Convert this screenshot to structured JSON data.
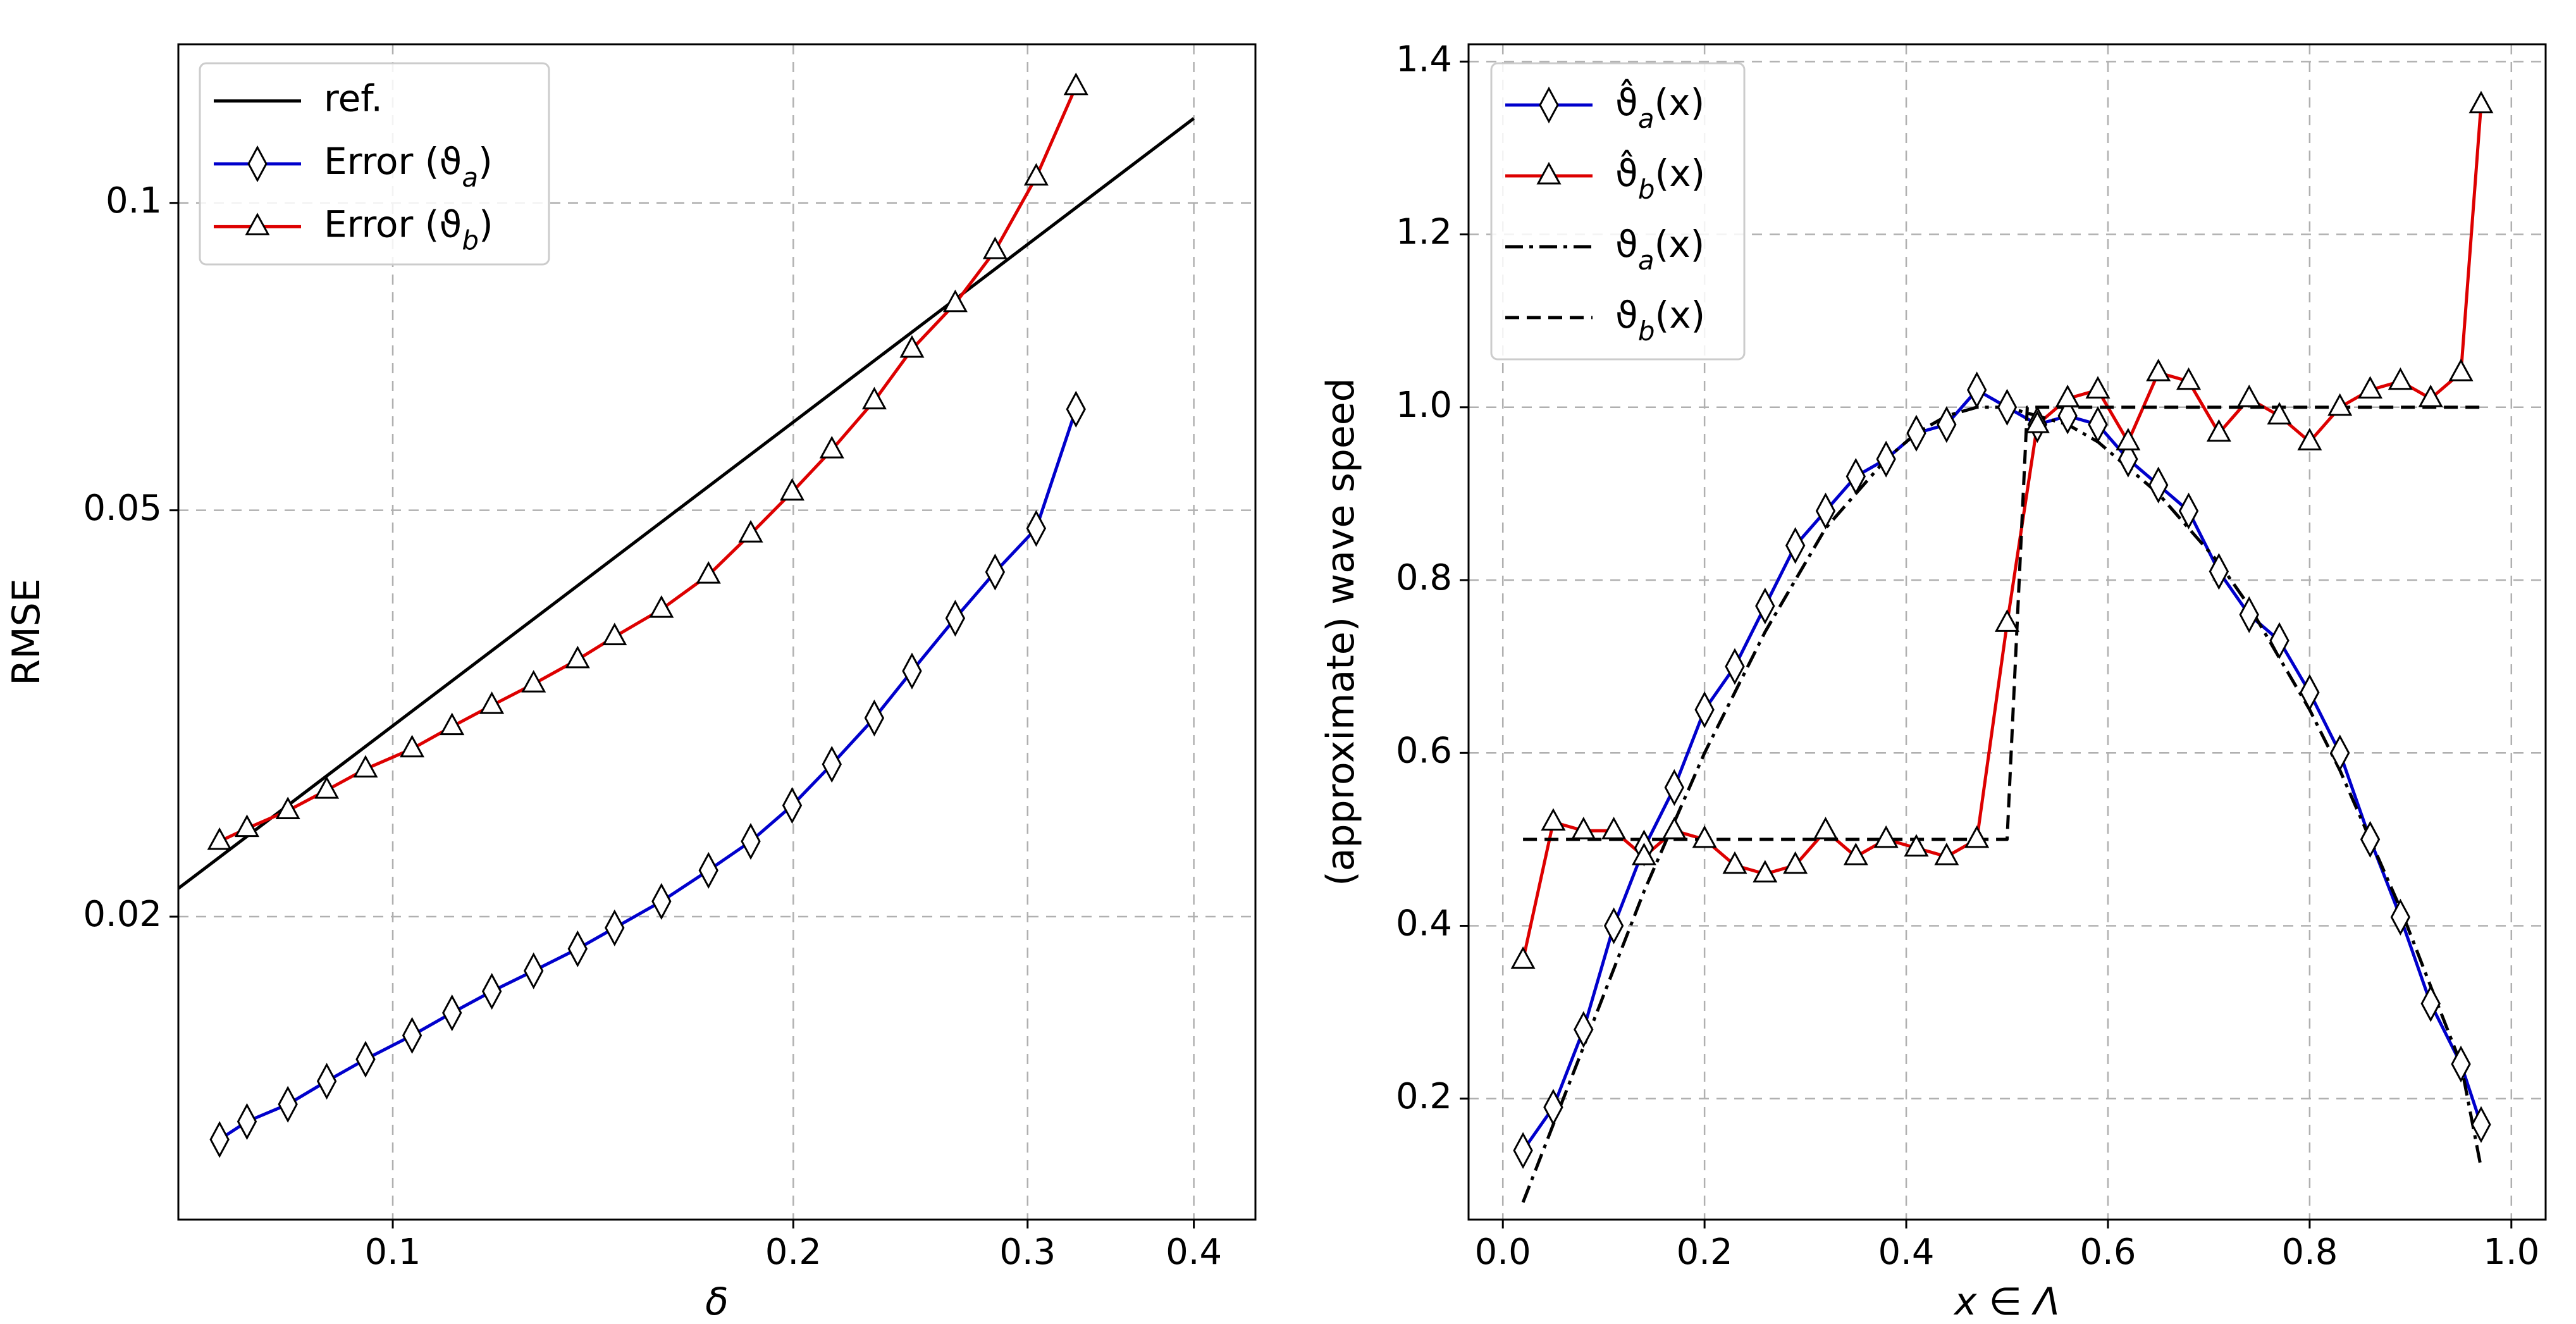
{
  "chart_data": [
    {
      "type": "line",
      "xscale": "log",
      "yscale": "log",
      "xlabel": "δ",
      "ylabel": "RMSE",
      "xlim": [
        0.069,
        0.445
      ],
      "ylim": [
        0.0101,
        0.143
      ],
      "xticks": [
        0.1,
        0.2,
        0.3,
        0.4
      ],
      "xtick_labels": [
        "0.1",
        "0.2",
        "0.3",
        "0.4"
      ],
      "yticks": [
        0.02,
        0.05,
        0.1
      ],
      "ytick_labels": [
        "0.02",
        "0.05",
        "0.1"
      ],
      "grid": true,
      "legend_position": "top-left",
      "series": [
        {
          "name": "ref.",
          "legend_label": "ref.",
          "color": "#000000",
          "marker": "none",
          "x": [
            0.066,
            0.4
          ],
          "y": [
            0.0204,
            0.121
          ]
        },
        {
          "name": "Error (ϑa)",
          "legend_label": "Error (ϑ",
          "legend_sub": "a",
          "legend_suffix": ")",
          "color": "#0000cc",
          "marker": "diamond",
          "x": [
            0.0741,
            0.0777,
            0.0834,
            0.0892,
            0.0954,
            0.1034,
            0.1108,
            0.1187,
            0.1276,
            0.1377,
            0.1468,
            0.1592,
            0.1727,
            0.1858,
            0.1996,
            0.2138,
            0.2301,
            0.2456,
            0.2647,
            0.2836,
            0.3045,
            0.3262
          ],
          "y": [
            0.0121,
            0.0126,
            0.0131,
            0.0138,
            0.0145,
            0.0153,
            0.0161,
            0.0169,
            0.0177,
            0.0186,
            0.0195,
            0.0207,
            0.0222,
            0.0237,
            0.0257,
            0.0282,
            0.0313,
            0.0348,
            0.0392,
            0.0435,
            0.048,
            0.0628
          ]
        },
        {
          "name": "Error (ϑb)",
          "legend_label": "Error (ϑ",
          "legend_sub": "b",
          "legend_suffix": ")",
          "color": "#dd0000",
          "marker": "triangle",
          "x": [
            0.0741,
            0.0777,
            0.0834,
            0.0892,
            0.0954,
            0.1034,
            0.1108,
            0.1187,
            0.1276,
            0.1377,
            0.1468,
            0.1592,
            0.1727,
            0.1858,
            0.1996,
            0.2138,
            0.2301,
            0.2456,
            0.2647,
            0.2836,
            0.3045,
            0.3262
          ],
          "y": [
            0.0237,
            0.0244,
            0.0254,
            0.0266,
            0.0279,
            0.0292,
            0.0307,
            0.0322,
            0.0338,
            0.0357,
            0.0376,
            0.04,
            0.0432,
            0.0474,
            0.0521,
            0.0573,
            0.064,
            0.0719,
            0.0797,
            0.0898,
            0.106,
            0.13
          ]
        }
      ]
    },
    {
      "type": "line",
      "xscale": "linear",
      "yscale": "linear",
      "xlabel": "x ∈ Λ",
      "ylabel": "(approximate) wave speed",
      "xlim": [
        -0.034,
        1.034
      ],
      "ylim": [
        0.06,
        1.42
      ],
      "xticks": [
        0.0,
        0.2,
        0.4,
        0.6,
        0.8,
        1.0
      ],
      "xtick_labels": [
        "0.0",
        "0.2",
        "0.4",
        "0.6",
        "0.8",
        "1.0"
      ],
      "yticks": [
        0.2,
        0.4,
        0.6,
        0.8,
        1.0,
        1.2,
        1.4
      ],
      "ytick_labels": [
        "0.2",
        "0.4",
        "0.6",
        "0.8",
        "1.0",
        "1.2",
        "1.4"
      ],
      "grid": true,
      "legend_position": "top-left",
      "series": [
        {
          "name": "ϑ̂a(x)",
          "legend_label": "ϑ̂",
          "legend_sub": "a",
          "legend_suffix": "(x)",
          "color": "#0000cc",
          "marker": "diamond",
          "x": [
            0.02,
            0.05,
            0.08,
            0.11,
            0.14,
            0.17,
            0.2,
            0.23,
            0.26,
            0.29,
            0.32,
            0.35,
            0.38,
            0.41,
            0.44,
            0.47,
            0.5,
            0.53,
            0.56,
            0.59,
            0.62,
            0.65,
            0.68,
            0.71,
            0.74,
            0.77,
            0.8,
            0.83,
            0.86,
            0.89,
            0.92,
            0.95,
            0.97
          ],
          "y": [
            0.14,
            0.19,
            0.28,
            0.4,
            0.49,
            0.56,
            0.65,
            0.7,
            0.77,
            0.84,
            0.88,
            0.92,
            0.94,
            0.97,
            0.98,
            1.02,
            1.0,
            0.98,
            0.99,
            0.98,
            0.94,
            0.91,
            0.88,
            0.81,
            0.76,
            0.73,
            0.67,
            0.6,
            0.5,
            0.41,
            0.31,
            0.24,
            0.17
          ]
        },
        {
          "name": "ϑ̂b(x)",
          "legend_label": "ϑ̂",
          "legend_sub": "b",
          "legend_suffix": "(x)",
          "color": "#dd0000",
          "marker": "triangle",
          "x": [
            0.02,
            0.05,
            0.08,
            0.11,
            0.14,
            0.17,
            0.2,
            0.23,
            0.26,
            0.29,
            0.32,
            0.35,
            0.38,
            0.41,
            0.44,
            0.47,
            0.5,
            0.53,
            0.56,
            0.59,
            0.62,
            0.65,
            0.68,
            0.71,
            0.74,
            0.77,
            0.8,
            0.83,
            0.86,
            0.89,
            0.92,
            0.95,
            0.97
          ],
          "y": [
            0.36,
            0.52,
            0.51,
            0.51,
            0.48,
            0.51,
            0.5,
            0.47,
            0.46,
            0.47,
            0.51,
            0.48,
            0.5,
            0.49,
            0.48,
            0.5,
            0.75,
            0.98,
            1.01,
            1.02,
            0.96,
            1.04,
            1.03,
            0.97,
            1.01,
            0.99,
            0.96,
            1.0,
            1.02,
            1.03,
            1.01,
            1.04,
            1.35
          ]
        },
        {
          "name": "ϑa(x)",
          "legend_label": "ϑ",
          "legend_sub": "a",
          "legend_suffix": "(x)",
          "color": "#000000",
          "style": "dashdot",
          "marker": "none",
          "x": [
            0.02,
            0.05,
            0.08,
            0.11,
            0.14,
            0.17,
            0.2,
            0.23,
            0.26,
            0.29,
            0.32,
            0.35,
            0.38,
            0.41,
            0.44,
            0.47,
            0.5,
            0.53,
            0.56,
            0.59,
            0.62,
            0.65,
            0.68,
            0.71,
            0.74,
            0.77,
            0.8,
            0.83,
            0.86,
            0.89,
            0.92,
            0.95,
            0.97
          ],
          "y": [
            0.08,
            0.17,
            0.26,
            0.35,
            0.44,
            0.52,
            0.6,
            0.67,
            0.74,
            0.8,
            0.86,
            0.9,
            0.94,
            0.97,
            0.99,
            1.0,
            1.0,
            0.99,
            0.98,
            0.96,
            0.93,
            0.9,
            0.86,
            0.82,
            0.77,
            0.71,
            0.65,
            0.58,
            0.5,
            0.42,
            0.33,
            0.24,
            0.12
          ]
        },
        {
          "name": "ϑb(x)",
          "legend_label": "ϑ",
          "legend_sub": "b",
          "legend_suffix": "(x)",
          "color": "#000000",
          "style": "dashed",
          "marker": "none",
          "x": [
            0.02,
            0.5,
            0.52,
            0.97
          ],
          "y": [
            0.5,
            0.5,
            1.0,
            1.0
          ]
        }
      ]
    }
  ]
}
